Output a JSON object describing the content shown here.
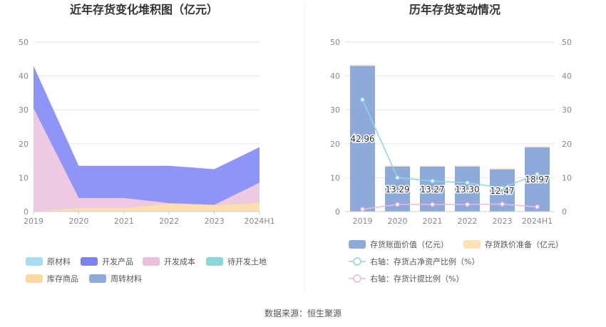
{
  "source_text": "数据来源：恒生聚源",
  "chart_data": [
    {
      "type": "area",
      "title": "近年存货变化堆积图（亿元）",
      "categories": [
        "2019",
        "2020",
        "2021",
        "2022",
        "2023",
        "2024H1"
      ],
      "ylim": [
        0,
        50
      ],
      "yticks": [
        0,
        10,
        20,
        30,
        40,
        50
      ],
      "grid": true,
      "legend_placement": "bottom",
      "series": [
        {
          "name": "原材料",
          "color": "#a8dcf4",
          "values": [
            0,
            0,
            0,
            0,
            0,
            0
          ]
        },
        {
          "name": "开发产品",
          "color": "#7b82f5",
          "values": [
            12.5,
            9.5,
            9.5,
            11,
            10.5,
            10.5
          ]
        },
        {
          "name": "开发成本",
          "color": "#ebc0dd",
          "values": [
            30.5,
            3,
            3,
            0.3,
            0.2,
            6
          ]
        },
        {
          "name": "待开发土地",
          "color": "#8ad8d8",
          "values": [
            0,
            0,
            0,
            0,
            0,
            0
          ]
        },
        {
          "name": "库存商品",
          "color": "#fdd9a0",
          "values": [
            0,
            1,
            1,
            2.2,
            1.8,
            2.5
          ]
        },
        {
          "name": "周转材料",
          "color": "#8eaadb",
          "values": [
            0,
            0,
            0,
            0,
            0,
            0
          ]
        }
      ]
    },
    {
      "type": "bar",
      "title": "历年存货变动情况",
      "categories": [
        "2019",
        "2020",
        "2021",
        "2022",
        "2023",
        "2024H1"
      ],
      "ylim": [
        0,
        50
      ],
      "yticks": [
        0,
        10,
        20,
        30,
        40,
        50
      ],
      "y2lim": [
        0,
        50
      ],
      "y2ticks": [
        0,
        10,
        20,
        30,
        40,
        50
      ],
      "grid": true,
      "legend_placement": "bottom",
      "series": [
        {
          "name": "存货账面价值（亿元）",
          "kind": "bar",
          "axis": "left",
          "color": "#8eaadb",
          "values": [
            42.96,
            13.29,
            13.27,
            13.3,
            12.47,
            18.97
          ],
          "labels": [
            "42.96",
            "13.29",
            "13.27",
            "13.30",
            "12.47",
            "18.97"
          ]
        },
        {
          "name": "存货跌价准备（亿元）",
          "kind": "bar",
          "axis": "left",
          "color": "#fde3b5",
          "values": [
            0.3,
            0.3,
            0.3,
            0.3,
            0.3,
            0.3
          ]
        },
        {
          "name": "右轴：存货占净资产比例（%）",
          "kind": "line",
          "axis": "right",
          "color": "#8ad8e0",
          "values": [
            33,
            10,
            9,
            8.5,
            7,
            11
          ]
        },
        {
          "name": "右轴：存货计提比例（%）",
          "kind": "line",
          "axis": "right",
          "color": "#efb8dc",
          "values": [
            0.7,
            2.1,
            2.1,
            2.1,
            2.2,
            1.4
          ]
        }
      ]
    }
  ]
}
